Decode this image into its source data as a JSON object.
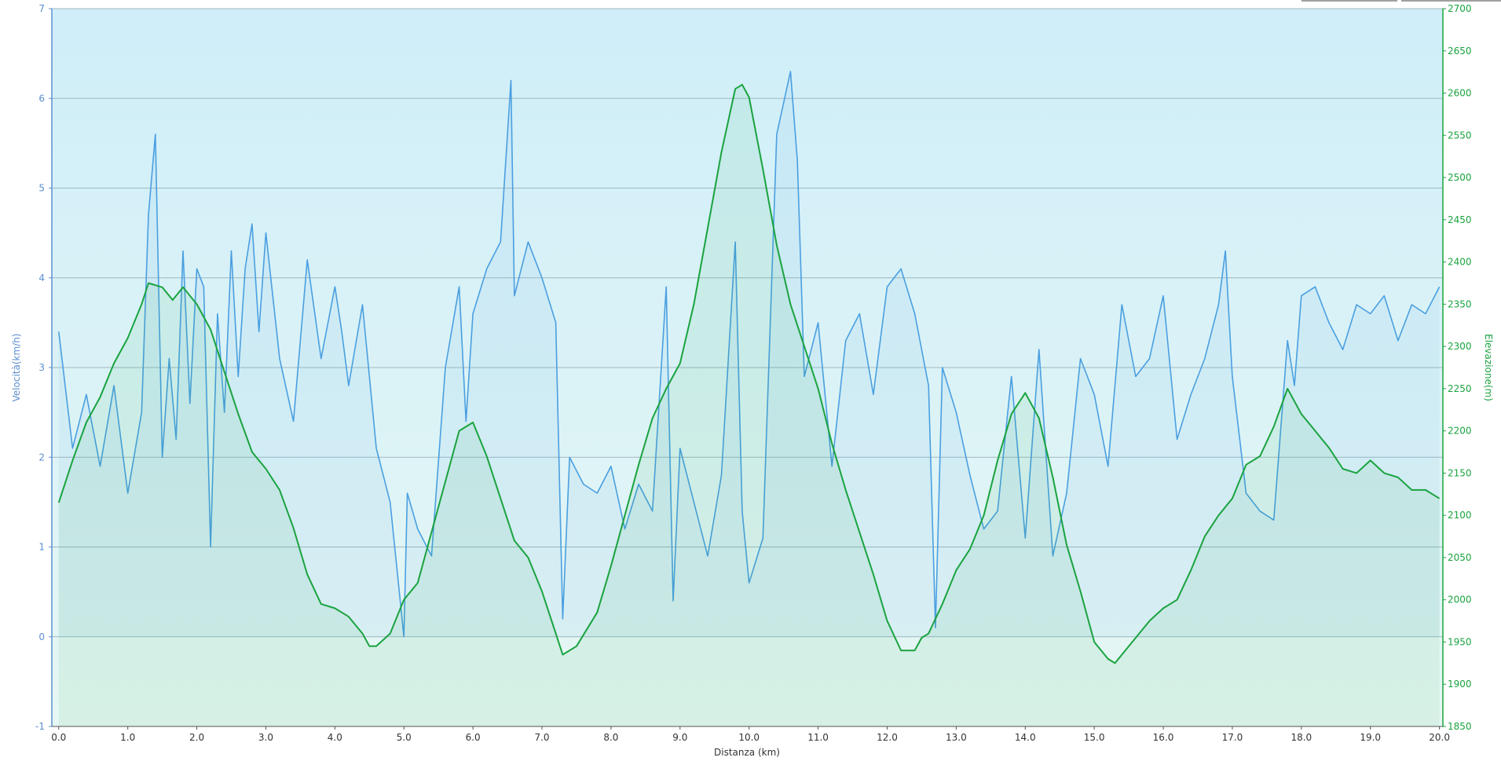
{
  "colors": {
    "speed": "#4a9fe0",
    "elevation": "#1aa33f",
    "left_axis": "#5b8fd0",
    "right_axis": "#1aa33f",
    "bg_top": "#cfeef9",
    "bg_bottom": "#e6f7f4",
    "grid": "#9fb8c0"
  },
  "chart_data": {
    "type": "line",
    "xlabel": "Distanza  (km)",
    "ylabel_left": "Velocità(km/h)",
    "ylabel_right": "Elevazione(m)",
    "xlim": [
      -0.1,
      20.05
    ],
    "ylim_left": [
      -1,
      7
    ],
    "ylim_right": [
      1850,
      2700
    ],
    "x_ticks": [
      "0.0",
      "1.0",
      "2.0",
      "3.0",
      "4.0",
      "5.0",
      "6.0",
      "7.0",
      "8.0",
      "9.0",
      "10.0",
      "11.0",
      "12.0",
      "13.0",
      "14.0",
      "15.0",
      "16.0",
      "17.0",
      "18.0",
      "19.0",
      "20.0"
    ],
    "y_left_ticks": [
      "-1",
      "0",
      "1",
      "2",
      "3",
      "4",
      "5",
      "6",
      "7"
    ],
    "y_right_ticks": [
      "1850",
      "1900",
      "1950",
      "2000",
      "2050",
      "2100",
      "2150",
      "2200",
      "2250",
      "2300",
      "2350",
      "2400",
      "2450",
      "2500",
      "2550",
      "2600",
      "2650",
      "2700"
    ],
    "grid": "horizontal",
    "series": [
      {
        "axis": "left",
        "x": [
          0.0,
          0.2,
          0.4,
          0.6,
          0.8,
          1.0,
          1.2,
          1.3,
          1.4,
          1.45,
          1.5,
          1.6,
          1.7,
          1.8,
          1.9,
          2.0,
          2.1,
          2.2,
          2.3,
          2.4,
          2.5,
          2.6,
          2.7,
          2.8,
          2.9,
          3.0,
          3.2,
          3.4,
          3.6,
          3.8,
          4.0,
          4.1,
          4.2,
          4.4,
          4.6,
          4.8,
          5.0,
          5.05,
          5.2,
          5.4,
          5.6,
          5.8,
          5.9,
          6.0,
          6.2,
          6.4,
          6.55,
          6.6,
          6.8,
          7.0,
          7.2,
          7.3,
          7.4,
          7.6,
          7.8,
          8.0,
          8.2,
          8.4,
          8.6,
          8.8,
          8.9,
          9.0,
          9.2,
          9.4,
          9.6,
          9.8,
          9.9,
          10.0,
          10.2,
          10.4,
          10.6,
          10.7,
          10.8,
          11.0,
          11.2,
          11.4,
          11.6,
          11.8,
          12.0,
          12.2,
          12.4,
          12.6,
          12.7,
          12.8,
          13.0,
          13.2,
          13.4,
          13.6,
          13.8,
          14.0,
          14.2,
          14.4,
          14.6,
          14.8,
          15.0,
          15.2,
          15.4,
          15.6,
          15.8,
          16.0,
          16.2,
          16.4,
          16.6,
          16.8,
          16.9,
          17.0,
          17.2,
          17.4,
          17.6,
          17.8,
          17.9,
          18.0,
          18.2,
          18.4,
          18.6,
          18.8,
          19.0,
          19.2,
          19.4,
          19.6,
          19.8,
          20.0
        ],
        "values": [
          3.4,
          2.1,
          2.7,
          1.9,
          2.8,
          1.6,
          2.5,
          4.7,
          5.6,
          3.8,
          2.0,
          3.1,
          2.2,
          4.3,
          2.6,
          4.1,
          3.9,
          1.0,
          3.6,
          2.5,
          4.3,
          2.9,
          4.1,
          4.6,
          3.4,
          4.5,
          3.1,
          2.4,
          4.2,
          3.1,
          3.9,
          3.4,
          2.8,
          3.7,
          2.1,
          1.5,
          0.0,
          1.6,
          1.2,
          0.9,
          3.0,
          3.9,
          2.4,
          3.6,
          4.1,
          4.4,
          6.2,
          3.8,
          4.4,
          4.0,
          3.5,
          0.2,
          2.0,
          1.7,
          1.6,
          1.9,
          1.2,
          1.7,
          1.4,
          3.9,
          0.4,
          2.1,
          1.5,
          0.9,
          1.8,
          4.4,
          1.4,
          0.6,
          1.1,
          5.6,
          6.3,
          5.3,
          2.9,
          3.5,
          1.9,
          3.3,
          3.6,
          2.7,
          3.9,
          4.1,
          3.6,
          2.8,
          0.1,
          3.0,
          2.5,
          1.8,
          1.2,
          1.4,
          2.9,
          1.1,
          3.2,
          0.9,
          1.6,
          3.1,
          2.7,
          1.9,
          3.7,
          2.9,
          3.1,
          3.8,
          2.2,
          2.7,
          3.1,
          3.7,
          4.3,
          2.9,
          1.6,
          1.4,
          1.3,
          3.3,
          2.8,
          3.8,
          3.9,
          3.5,
          3.2,
          3.7,
          3.6,
          3.8,
          3.3,
          3.7,
          3.6,
          3.9
        ]
      },
      {
        "axis": "right",
        "x": [
          0.0,
          0.2,
          0.4,
          0.6,
          0.8,
          1.0,
          1.2,
          1.3,
          1.5,
          1.65,
          1.8,
          2.0,
          2.2,
          2.4,
          2.6,
          2.8,
          3.0,
          3.2,
          3.4,
          3.6,
          3.8,
          4.0,
          4.2,
          4.4,
          4.5,
          4.6,
          4.8,
          5.0,
          5.2,
          5.4,
          5.6,
          5.8,
          6.0,
          6.2,
          6.4,
          6.6,
          6.8,
          7.0,
          7.2,
          7.3,
          7.5,
          7.8,
          8.0,
          8.2,
          8.4,
          8.6,
          8.8,
          9.0,
          9.2,
          9.4,
          9.6,
          9.8,
          9.9,
          10.0,
          10.2,
          10.4,
          10.6,
          10.8,
          11.0,
          11.2,
          11.4,
          11.6,
          11.8,
          12.0,
          12.2,
          12.4,
          12.5,
          12.6,
          12.8,
          13.0,
          13.2,
          13.4,
          13.6,
          13.8,
          14.0,
          14.2,
          14.4,
          14.6,
          14.8,
          15.0,
          15.2,
          15.3,
          15.4,
          15.6,
          15.8,
          16.0,
          16.2,
          16.4,
          16.6,
          16.8,
          17.0,
          17.2,
          17.4,
          17.6,
          17.8,
          18.0,
          18.2,
          18.4,
          18.6,
          18.8,
          19.0,
          19.2,
          19.4,
          19.6,
          19.8,
          20.0
        ],
        "values": [
          2115,
          2165,
          2210,
          2240,
          2280,
          2310,
          2350,
          2375,
          2370,
          2355,
          2370,
          2350,
          2320,
          2270,
          2220,
          2175,
          2155,
          2130,
          2085,
          2030,
          1995,
          1990,
          1980,
          1960,
          1945,
          1945,
          1960,
          2000,
          2020,
          2080,
          2140,
          2200,
          2210,
          2170,
          2120,
          2070,
          2050,
          2010,
          1960,
          1935,
          1945,
          1985,
          2040,
          2100,
          2160,
          2215,
          2250,
          2280,
          2350,
          2440,
          2530,
          2605,
          2610,
          2595,
          2510,
          2420,
          2350,
          2300,
          2250,
          2185,
          2130,
          2080,
          2030,
          1975,
          1940,
          1940,
          1955,
          1960,
          1995,
          2035,
          2060,
          2100,
          2165,
          2220,
          2245,
          2215,
          2145,
          2065,
          2010,
          1950,
          1930,
          1925,
          1935,
          1955,
          1975,
          1990,
          2000,
          2035,
          2075,
          2100,
          2120,
          2160,
          2170,
          2205,
          2250,
          2220,
          2200,
          2180,
          2155,
          2150,
          2165,
          2150,
          2145,
          2130,
          2130,
          2120
        ]
      }
    ]
  }
}
